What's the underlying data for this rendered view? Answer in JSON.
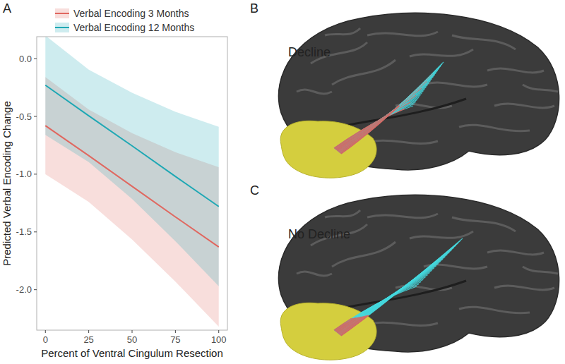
{
  "chart_data": {
    "type": "line",
    "panel": "A",
    "x_label": "Percent of Ventral Cingulum Resection",
    "y_label": "Predicted Verbal Encoding Change",
    "x": [
      0,
      25,
      50,
      75,
      100
    ],
    "xlim": [
      -5,
      105
    ],
    "xticks": [
      0,
      25,
      50,
      75,
      100
    ],
    "ylim": [
      -2.35,
      0.19
    ],
    "yticks": [
      {
        "value": 0,
        "label": "0.0"
      },
      {
        "value": -0.5,
        "label": "-0.5"
      },
      {
        "value": -1,
        "label": "-1.0"
      },
      {
        "value": -1.5,
        "label": "-1.5"
      },
      {
        "value": -2,
        "label": "-2.0"
      }
    ],
    "grid": false,
    "legend": "top",
    "series": [
      {
        "name": "Verbal Encoding 3 Months",
        "color": "#e0675f",
        "values": [
          -0.58,
          -0.84,
          -1.105,
          -1.37,
          -1.63
        ],
        "lower": [
          -1.0,
          -1.24,
          -1.565,
          -1.93,
          -2.32
        ],
        "upper": [
          -0.16,
          -0.44,
          -0.645,
          -0.81,
          -0.94
        ]
      },
      {
        "name": "Verbal Encoding 12 Months",
        "color": "#1fa8b4",
        "values": [
          -0.23,
          -0.495,
          -0.755,
          -1.02,
          -1.28
        ],
        "lower": [
          -0.66,
          -0.895,
          -1.215,
          -1.58,
          -1.97
        ],
        "upper": [
          0.2,
          -0.095,
          -0.295,
          -0.46,
          -0.59
        ]
      }
    ]
  },
  "panels": [
    {
      "label": "B",
      "caption": "Decline"
    },
    {
      "label": "C",
      "caption": "No Decline"
    }
  ]
}
